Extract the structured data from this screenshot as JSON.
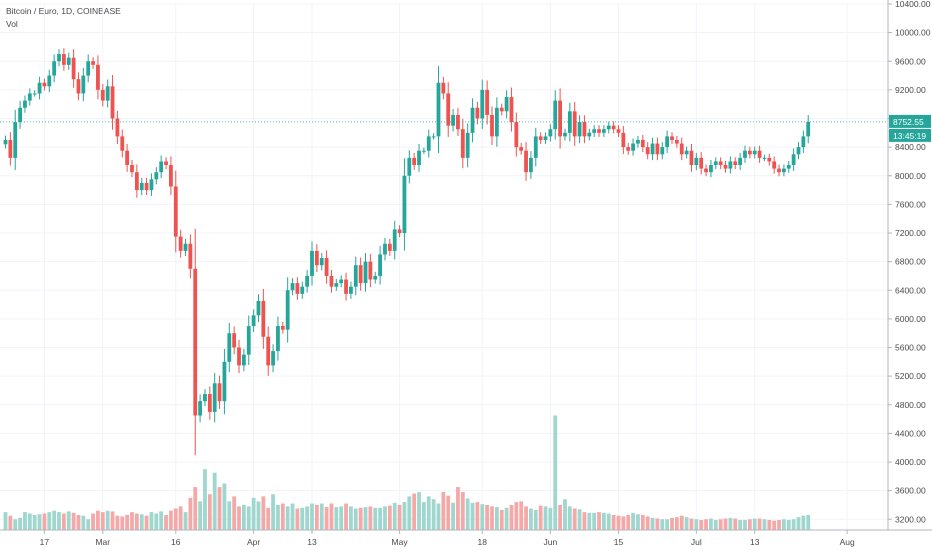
{
  "legend": {
    "symbol": "Bitcoin / Euro, 1D, COINBASE",
    "volume": "Vol"
  },
  "colors": {
    "up": "#26a69a",
    "down": "#ef5350",
    "up_vol": "#9fd7cf",
    "down_vol": "#f4a9a8",
    "grid": "#f0f3fa",
    "axis": "#b2b5be",
    "text": "#4a4a4a",
    "last_line": "#26a69a"
  },
  "last_price": {
    "value": 8752.55,
    "label": "8752.55",
    "countdown": "13:45:19"
  },
  "chart_data": {
    "type": "candlestick",
    "ylim": [
      3050,
      10400
    ],
    "y_ticks": [
      3200,
      3600,
      4000,
      4400,
      4800,
      5200,
      5600,
      6000,
      6400,
      6800,
      7200,
      7600,
      8000,
      8400,
      8800,
      9200,
      9600,
      10000,
      10400
    ],
    "y_tick_labels": [
      "3200.00",
      "3600.00",
      "4000.00",
      "4400.00",
      "4800.00",
      "5200.00",
      "5600.00",
      "6000.00",
      "6400.00",
      "6800.00",
      "7200.00",
      "7600.00",
      "8000.00",
      "8400.00",
      "8800.00",
      "9200.00",
      "9600.00",
      "10000.00",
      "10400.00"
    ],
    "x_tick_labels": [
      {
        "label": "17",
        "index": 8
      },
      {
        "label": "Mar",
        "index": 20
      },
      {
        "label": "16",
        "index": 35
      },
      {
        "label": "Apr",
        "index": 51
      },
      {
        "label": "13",
        "index": 63
      },
      {
        "label": "May",
        "index": 81
      },
      {
        "label": "18",
        "index": 98
      },
      {
        "label": "Jun",
        "index": 112
      },
      {
        "label": "15",
        "index": 126
      },
      {
        "label": "Jul",
        "index": 142
      },
      {
        "label": "13",
        "index": 154
      },
      {
        "label": "Aug",
        "index": 173
      }
    ],
    "closes": [
      8500,
      8250,
      8750,
      8950,
      9050,
      9150,
      9150,
      9300,
      9250,
      9400,
      9600,
      9700,
      9550,
      9650,
      9350,
      9150,
      9400,
      9600,
      9550,
      9200,
      9050,
      9250,
      8800,
      8550,
      8350,
      8150,
      8050,
      7800,
      7900,
      7800,
      7950,
      8050,
      8200,
      8150,
      7850,
      7150,
      6950,
      7050,
      6700,
      4650,
      4850,
      4950,
      4700,
      5100,
      4850,
      5400,
      5800,
      5600,
      5350,
      5500,
      5900,
      6050,
      6250,
      5750,
      5350,
      5550,
      5900,
      5850,
      6400,
      6500,
      6350,
      6450,
      6600,
      6950,
      6750,
      6850,
      6600,
      6450,
      6500,
      6550,
      6350,
      6450,
      6750,
      6500,
      6800,
      6550,
      6600,
      6900,
      7050,
      6950,
      7250,
      7200,
      8000,
      8250,
      8150,
      8350,
      8350,
      8550,
      8550,
      9300,
      9150,
      8700,
      8850,
      8650,
      8250,
      8600,
      8950,
      8800,
      9200,
      8850,
      8550,
      8950,
      8900,
      9100,
      8750,
      8400,
      8350,
      8050,
      8250,
      8550,
      8500,
      8550,
      8650,
      9050,
      8550,
      8600,
      8900,
      8550,
      8750,
      8550,
      8600,
      8650,
      8600,
      8650,
      8700,
      8650,
      8600,
      8400,
      8350,
      8450,
      8500,
      8400,
      8300,
      8450,
      8300,
      8400,
      8550,
      8500,
      8450,
      8300,
      8350,
      8150,
      8250,
      8100,
      8050,
      8150,
      8200,
      8150,
      8100,
      8200,
      8150,
      8250,
      8350,
      8300,
      8350,
      8250,
      8250,
      8200,
      8100,
      8050,
      8100,
      8150,
      8300,
      8400,
      8550,
      8752.55
    ],
    "volumes": [
      3300,
      3250,
      3200,
      3220,
      3300,
      3280,
      3260,
      3270,
      3280,
      3300,
      3320,
      3300,
      3280,
      3310,
      3290,
      3260,
      3250,
      3200,
      3280,
      3320,
      3300,
      3320,
      3310,
      3250,
      3240,
      3260,
      3300,
      3280,
      3270,
      3250,
      3300,
      3280,
      3310,
      3260,
      3320,
      3350,
      3380,
      3300,
      3500,
      3650,
      3450,
      3900,
      3550,
      3850,
      3650,
      3700,
      3450,
      3520,
      3380,
      3400,
      3380,
      3500,
      3450,
      3520,
      3360,
      3550,
      3400,
      3420,
      3380,
      3420,
      3350,
      3360,
      3380,
      3420,
      3400,
      3420,
      3370,
      3420,
      3370,
      3380,
      3420,
      3380,
      3350,
      3360,
      3370,
      3380,
      3360,
      3360,
      3380,
      3390,
      3430,
      3400,
      3440,
      3520,
      3560,
      3580,
      3440,
      3520,
      3480,
      3420,
      3580,
      3530,
      3430,
      3650,
      3580,
      3490,
      3430,
      3440,
      3410,
      3400,
      3380,
      3370,
      3330,
      3360,
      3400,
      3440,
      3450,
      3380,
      3350,
      3330,
      3390,
      3380,
      3360,
      4650,
      3400,
      3480,
      3380,
      3350,
      3340,
      3300,
      3290,
      3290,
      3300,
      3290,
      3280,
      3260,
      3250,
      3240,
      3260,
      3290,
      3270,
      3260,
      3240,
      3220,
      3210,
      3200,
      3200,
      3220,
      3230,
      3250,
      3230,
      3210,
      3200,
      3190,
      3200,
      3210,
      3190,
      3200,
      3210,
      3220,
      3210,
      3190,
      3190,
      3200,
      3210,
      3210,
      3200,
      3190,
      3180,
      3190,
      3200,
      3190,
      3200,
      3230,
      3250,
      3260
    ]
  }
}
